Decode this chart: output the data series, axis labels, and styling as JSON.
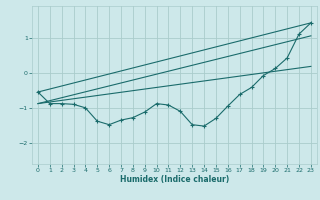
{
  "xlabel": "Humidex (Indice chaleur)",
  "ylabel": "",
  "background_color": "#cde8ea",
  "grid_color": "#aacccc",
  "line_color": "#1a6b6b",
  "xlim": [
    -0.5,
    23.5
  ],
  "ylim": [
    -2.6,
    1.9
  ],
  "yticks": [
    -2,
    -1,
    0,
    1
  ],
  "xticks": [
    0,
    1,
    2,
    3,
    4,
    5,
    6,
    7,
    8,
    9,
    10,
    11,
    12,
    13,
    14,
    15,
    16,
    17,
    18,
    19,
    20,
    21,
    22,
    23
  ],
  "line1_x": [
    0,
    1,
    2,
    3,
    4,
    5,
    6,
    7,
    8,
    9,
    10,
    11,
    12,
    13,
    14,
    15,
    16,
    17,
    18,
    19,
    20,
    21,
    22,
    23
  ],
  "line1_y": [
    -0.55,
    -0.88,
    -0.88,
    -0.9,
    -1.0,
    -1.38,
    -1.48,
    -1.35,
    -1.28,
    -1.12,
    -0.88,
    -0.92,
    -1.1,
    -1.48,
    -1.52,
    -1.3,
    -0.95,
    -0.62,
    -0.42,
    -0.08,
    0.12,
    0.42,
    1.1,
    1.42
  ],
  "line2_x": [
    0,
    23
  ],
  "line2_y": [
    -0.55,
    1.42
  ],
  "line3_x": [
    0,
    23
  ],
  "line3_y": [
    -0.88,
    1.05
  ],
  "line4_x": [
    0,
    23
  ],
  "line4_y": [
    -0.88,
    0.18
  ]
}
